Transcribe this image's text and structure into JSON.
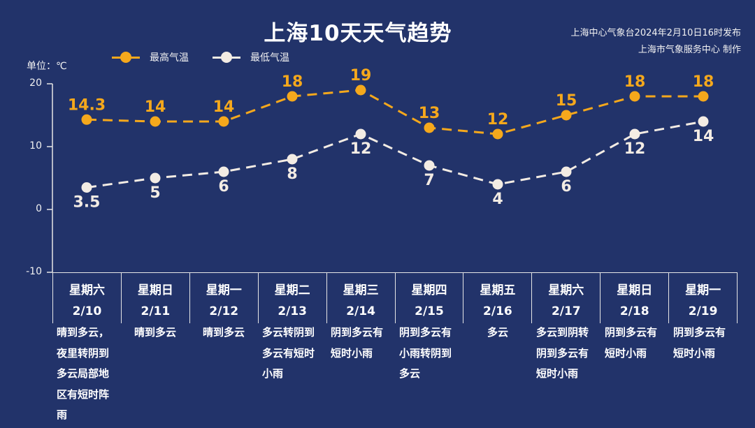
{
  "header": {
    "title": "上海10天天气趋势",
    "issuer_line1": "上海中心气象台2024年2月10日16时发布",
    "issuer_line2": "上海市气象服务中心 制作",
    "unit": "单位：℃"
  },
  "legend": {
    "high": "最高气温",
    "low": "最低气温"
  },
  "colors": {
    "background": "#22336a",
    "high": "#f5a81c",
    "low": "#f3ece4",
    "axis": "#e6e6e6"
  },
  "yaxis": {
    "ticks": [
      "20",
      "10",
      "0",
      "-10"
    ]
  },
  "days": [
    {
      "weekday": "星期六",
      "date": "2/10",
      "desc": "晴到多云，夜里转阴到多云局部地区有短时阵雨"
    },
    {
      "weekday": "星期日",
      "date": "2/11",
      "desc": "晴到多云"
    },
    {
      "weekday": "星期一",
      "date": "2/12",
      "desc": "晴到多云"
    },
    {
      "weekday": "星期二",
      "date": "2/13",
      "desc": "多云转阴到多云有短时小雨"
    },
    {
      "weekday": "星期三",
      "date": "2/14",
      "desc": "阴到多云有短时小雨"
    },
    {
      "weekday": "星期四",
      "date": "2/15",
      "desc": "阴到多云有小雨转阴到多云"
    },
    {
      "weekday": "星期五",
      "date": "2/16",
      "desc": "多云"
    },
    {
      "weekday": "星期六",
      "date": "2/17",
      "desc": "多云到阴转阴到多云有短时小雨"
    },
    {
      "weekday": "星期日",
      "date": "2/18",
      "desc": "阴到多云有短时小雨"
    },
    {
      "weekday": "星期一",
      "date": "2/19",
      "desc": "阴到多云有短时小雨"
    }
  ],
  "chart_data": {
    "type": "line",
    "title": "上海10天天气趋势",
    "xlabel": "",
    "ylabel": "单位：℃",
    "ylim": [
      -10,
      20
    ],
    "yticks": [
      -10,
      0,
      10,
      20
    ],
    "grid": false,
    "legend_position": "top",
    "categories": [
      "2/10",
      "2/11",
      "2/12",
      "2/13",
      "2/14",
      "2/15",
      "2/16",
      "2/17",
      "2/18",
      "2/19"
    ],
    "series": [
      {
        "name": "最高气温",
        "values": [
          14.3,
          14,
          14,
          18,
          19,
          13,
          12,
          15,
          18,
          18
        ],
        "labels": [
          "14.3",
          "14",
          "14",
          "18",
          "19",
          "13",
          "12",
          "15",
          "18",
          "18"
        ],
        "style": "dashed",
        "color": "#f5a81c"
      },
      {
        "name": "最低气温",
        "values": [
          3.5,
          5,
          6,
          8,
          12,
          7,
          4,
          6,
          12,
          14
        ],
        "labels": [
          "3.5",
          "5",
          "6",
          "8",
          "12",
          "7",
          "4",
          "6",
          "12",
          "14"
        ],
        "style": "dashed",
        "color": "#f3ece4"
      }
    ]
  }
}
